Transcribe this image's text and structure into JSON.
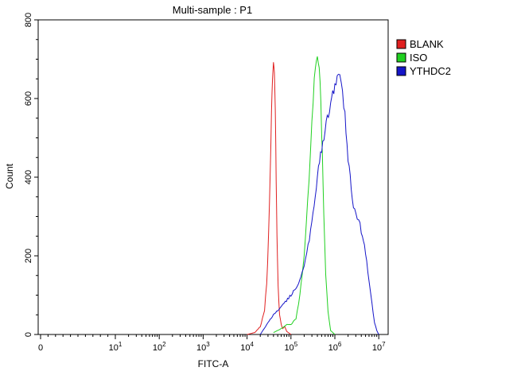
{
  "chart_data": {
    "type": "line",
    "title": "Multi-sample : P1",
    "xlabel": "FITC-A",
    "ylabel": "Count",
    "xscale": "biexponential (log above 10^1)",
    "ylim": [
      0,
      800
    ],
    "yticks": [
      0,
      200,
      400,
      600,
      800
    ],
    "xticks": [
      {
        "base": "0",
        "exp": ""
      },
      {
        "base": "10",
        "exp": "1"
      },
      {
        "base": "10",
        "exp": "2"
      },
      {
        "base": "10",
        "exp": "3"
      },
      {
        "base": "10",
        "exp": "4"
      },
      {
        "base": "10",
        "exp": "5"
      },
      {
        "base": "10",
        "exp": "6"
      },
      {
        "base": "10",
        "exp": "7"
      }
    ],
    "legend_position": "top-right",
    "grid": false,
    "series": [
      {
        "name": "BLANK",
        "color": "#e02020",
        "x": [
          10000,
          15000,
          20000,
          25000,
          28000,
          31000,
          34000,
          36000,
          38000,
          40000,
          42000,
          44000,
          46000,
          48000,
          51000,
          55000,
          60000,
          65000,
          72000,
          80000,
          100000
        ],
        "y": [
          0,
          5,
          20,
          60,
          130,
          250,
          420,
          560,
          660,
          685,
          660,
          560,
          400,
          260,
          120,
          50,
          25,
          15,
          20,
          8,
          0
        ]
      },
      {
        "name": "ISO",
        "color": "#20d020",
        "x": [
          40000,
          60000,
          80000,
          100000,
          130000,
          160000,
          200000,
          240000,
          280000,
          320000,
          360000,
          400000,
          440000,
          480000,
          520000,
          560000,
          620000,
          700000,
          800000,
          1000000
        ],
        "y": [
          5,
          15,
          25,
          25,
          40,
          100,
          200,
          330,
          470,
          600,
          680,
          700,
          680,
          590,
          450,
          300,
          150,
          60,
          10,
          0
        ]
      },
      {
        "name": "YTHDC2",
        "color": "#1515c8",
        "x": [
          20000,
          30000,
          40000,
          50000,
          70000,
          100000,
          150000,
          200000,
          300000,
          400000,
          500000,
          600000,
          800000,
          1000000,
          1200000,
          1400000,
          1700000,
          2000000,
          2500000,
          3000000,
          3500000,
          4000000,
          5000000,
          6000000,
          7000000,
          8000000,
          9000000,
          10000000
        ],
        "y": [
          0,
          30,
          50,
          60,
          80,
          100,
          130,
          180,
          280,
          400,
          470,
          520,
          590,
          630,
          660,
          640,
          560,
          450,
          340,
          310,
          290,
          260,
          210,
          140,
          80,
          30,
          10,
          0
        ]
      }
    ]
  }
}
